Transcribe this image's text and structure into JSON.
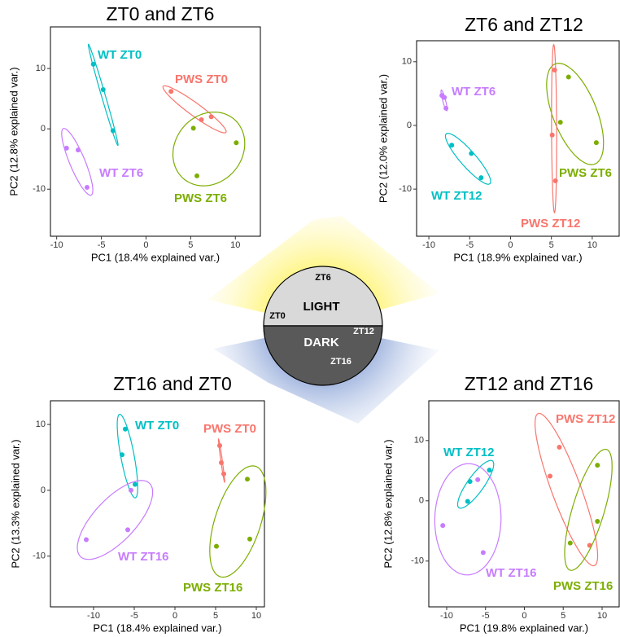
{
  "chart_data": [
    {
      "type": "scatter",
      "title": "ZT0 and ZT6",
      "xlabel": "PC1 (18.4% explained var.)",
      "ylabel": "PC2 (12.8% explained var.)",
      "xlim": [
        -10.7,
        12.8
      ],
      "ylim": [
        -17.8,
        16.9
      ],
      "xticks": [
        -10,
        -5,
        0,
        5,
        10
      ],
      "yticks": [
        -10,
        0,
        10
      ],
      "series": [
        {
          "name": "WT ZT0",
          "color": "#00BFC4",
          "x": [
            -5.9,
            -4.8,
            -3.7
          ],
          "y": [
            10.7,
            6.5,
            -0.3
          ]
        },
        {
          "name": "PWS ZT0",
          "color": "#F8766D",
          "x": [
            2.8,
            6.2,
            7.3
          ],
          "y": [
            6.2,
            1.5,
            2.0
          ]
        },
        {
          "name": "WT ZT6",
          "color": "#C77CFF",
          "x": [
            -8.9,
            -7.6,
            -6.6
          ],
          "y": [
            -3.2,
            -3.5,
            -9.7
          ]
        },
        {
          "name": "PWS ZT6",
          "color": "#7CAE00",
          "x": [
            5.3,
            5.7,
            10.1
          ],
          "y": [
            0.1,
            -7.8,
            -2.3
          ]
        }
      ]
    },
    {
      "type": "scatter",
      "title": "ZT6 and ZT12",
      "xlabel": "PC1 (18.9% explained var.)",
      "ylabel": "PC2 (12.0% explained var.)",
      "xlim": [
        -11.5,
        13.3
      ],
      "ylim": [
        -17.4,
        13.3
      ],
      "xticks": [
        -10,
        -5,
        0,
        5,
        10
      ],
      "yticks": [
        -10,
        0,
        10
      ],
      "series": [
        {
          "name": "WT ZT6",
          "color": "#C77CFF",
          "x": [
            -8.4,
            -8.1,
            -7.9
          ],
          "y": [
            4.7,
            4.4,
            2.7
          ]
        },
        {
          "name": "PWS ZT6",
          "color": "#7CAE00",
          "x": [
            7.1,
            6.1,
            10.5
          ],
          "y": [
            7.6,
            0.5,
            -2.7
          ]
        },
        {
          "name": "WT ZT12",
          "color": "#00BFC4",
          "x": [
            -7.2,
            -4.8,
            -3.6
          ],
          "y": [
            -3.1,
            -4.4,
            -8.2
          ]
        },
        {
          "name": "PWS ZT12",
          "color": "#F8766D",
          "x": [
            5.4,
            5.1,
            5.5
          ],
          "y": [
            8.7,
            -1.5,
            -8.7
          ]
        }
      ]
    },
    {
      "type": "scatter",
      "title": "ZT16 and ZT0",
      "xlabel": "PC1 (18.4% explained var.)",
      "ylabel": "PC2 (13.3% explained var.)",
      "xlim": [
        -15.3,
        11
      ],
      "ylim": [
        -17.7,
        13.6
      ],
      "xticks": [
        -10,
        -5,
        0,
        5,
        10
      ],
      "yticks": [
        -10,
        0,
        10
      ],
      "series": [
        {
          "name": "WT ZT0",
          "color": "#00BFC4",
          "x": [
            -6.1,
            -6.5,
            -4.9
          ],
          "y": [
            9.3,
            5.4,
            0.9
          ]
        },
        {
          "name": "PWS ZT0",
          "color": "#F8766D",
          "x": [
            5.5,
            5.7,
            6.0
          ],
          "y": [
            6.8,
            4.2,
            2.5
          ]
        },
        {
          "name": "WT ZT16",
          "color": "#C77CFF",
          "x": [
            -10.9,
            -5.8,
            -5.4
          ],
          "y": [
            -7.5,
            -6.0,
            0.0
          ]
        },
        {
          "name": "PWS ZT16",
          "color": "#7CAE00",
          "x": [
            5.1,
            8.9,
            9.2
          ],
          "y": [
            -8.5,
            1.7,
            -7.4
          ]
        }
      ]
    },
    {
      "type": "scatter",
      "title": "ZT12 and ZT16",
      "xlabel": "PC1 (19.8% explained var.)",
      "ylabel": "PC2 (12.8% explained var.)",
      "xlim": [
        -12.3,
        12.2
      ],
      "ylim": [
        -17.6,
        16.6
      ],
      "xticks": [
        -10,
        -5,
        0,
        5,
        10
      ],
      "yticks": [
        -10,
        0,
        10
      ],
      "series": [
        {
          "name": "WT ZT12",
          "color": "#00BFC4",
          "x": [
            -7.0,
            -7.3,
            -4.5
          ],
          "y": [
            3.2,
            -0.1,
            5.1
          ]
        },
        {
          "name": "PWS ZT12",
          "color": "#F8766D",
          "x": [
            3.3,
            4.5,
            8.4
          ],
          "y": [
            4.1,
            8.9,
            -7.4
          ]
        },
        {
          "name": "WT ZT16",
          "color": "#C77CFF",
          "x": [
            -6.0,
            -10.5,
            -5.3
          ],
          "y": [
            3.5,
            -4.1,
            -8.6
          ]
        },
        {
          "name": "PWS ZT16",
          "color": "#7CAE00",
          "x": [
            9.4,
            5.9,
            9.4
          ],
          "y": [
            5.9,
            -7.0,
            -3.4
          ]
        }
      ]
    }
  ],
  "diagram": {
    "top": "ZT6",
    "light": "LIGHT",
    "left": "ZT0",
    "right": "ZT12",
    "dark": "DARK",
    "bottom": "ZT16"
  }
}
